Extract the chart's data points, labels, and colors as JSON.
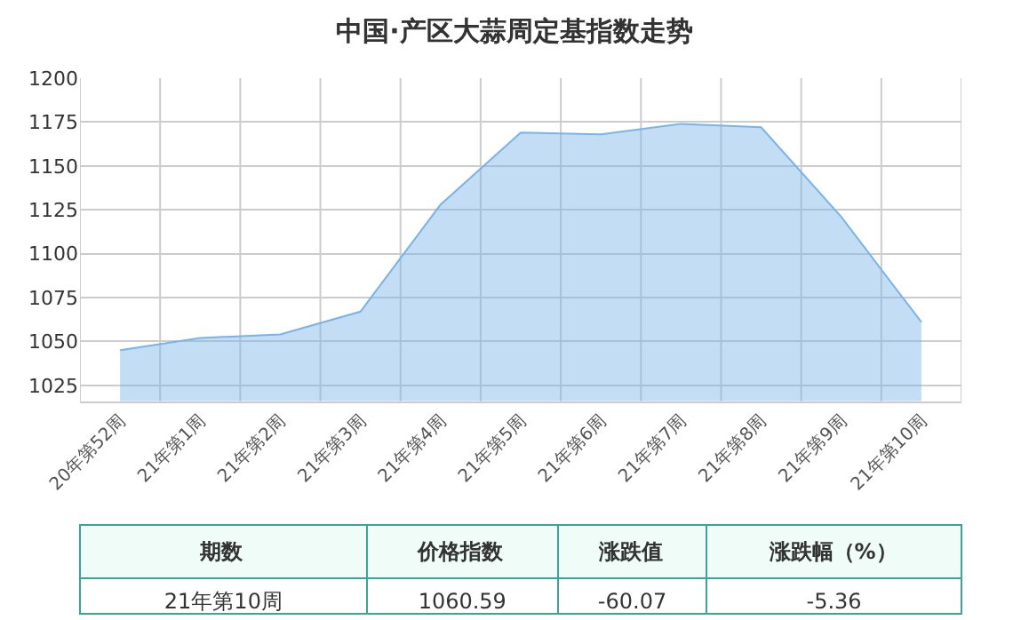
{
  "chart_data": {
    "type": "area",
    "title": "中国·产区大蒜周定基指数走势",
    "categories": [
      "20年第52周",
      "21年第1周",
      "21年第2周",
      "21年第3周",
      "21年第4周",
      "21年第5周",
      "21年第6周",
      "21年第7周",
      "21年第8周",
      "21年第9周",
      "21年第10周"
    ],
    "series": [
      {
        "color": "#7ab3e8",
        "values": [
          1045,
          1052,
          1054,
          1067,
          1128,
          1169,
          1168,
          1174,
          1172,
          1121,
          1061
        ]
      }
    ],
    "ylim": [
      1016,
      1200
    ],
    "yticks": [
      1025,
      1050,
      1075,
      1100,
      1125,
      1150,
      1175,
      1200
    ],
    "grid": true,
    "marker": "none",
    "annotations": [
      "期数",
      "价格指数",
      "涨跌值",
      "涨跌幅（%）",
      "21年第10周",
      "1060.59",
      "-60.07",
      "-5.36"
    ]
  }
}
